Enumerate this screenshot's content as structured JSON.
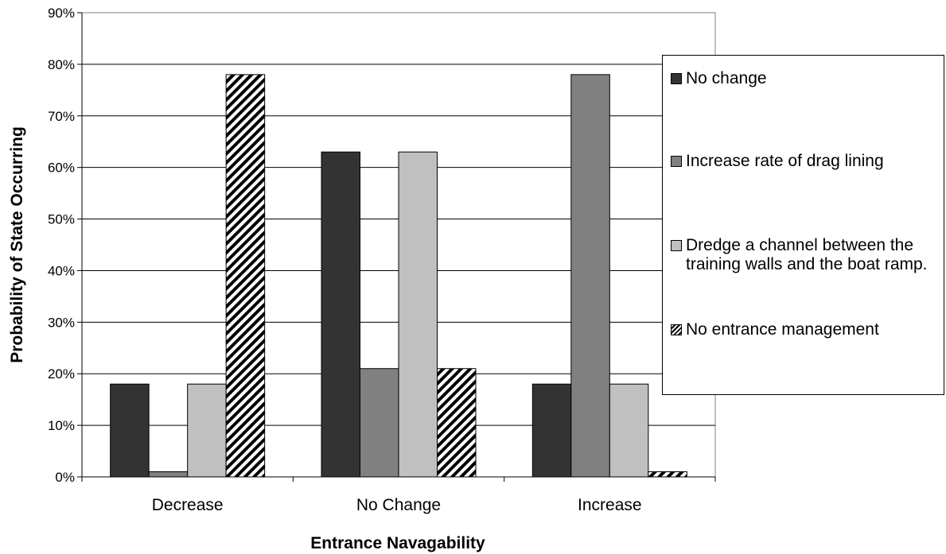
{
  "chart_data": {
    "type": "bar",
    "categories": [
      "Decrease",
      "No Change",
      "Increase"
    ],
    "series": [
      {
        "name": "No change",
        "values": [
          18,
          63,
          18
        ],
        "color": "#333333",
        "pattern": "solid"
      },
      {
        "name": "Increase rate of drag lining",
        "values": [
          1,
          21,
          78
        ],
        "color": "#808080",
        "pattern": "solid"
      },
      {
        "name": "Dredge a channel between the training walls and the boat ramp.",
        "values": [
          18,
          63,
          18
        ],
        "color": "#c0c0c0",
        "pattern": "solid"
      },
      {
        "name": "No entrance management",
        "values": [
          78,
          21,
          1
        ],
        "color": "#000000",
        "pattern": "diagonal-hatch"
      }
    ],
    "xlabel": "Entrance Navagability",
    "ylabel": "Probability of State Occurring",
    "ylim": [
      0,
      90
    ],
    "yticks": [
      "0%",
      "10%",
      "20%",
      "30%",
      "40%",
      "50%",
      "60%",
      "70%",
      "80%",
      "90%"
    ],
    "grid": true,
    "legend_position": "right"
  }
}
